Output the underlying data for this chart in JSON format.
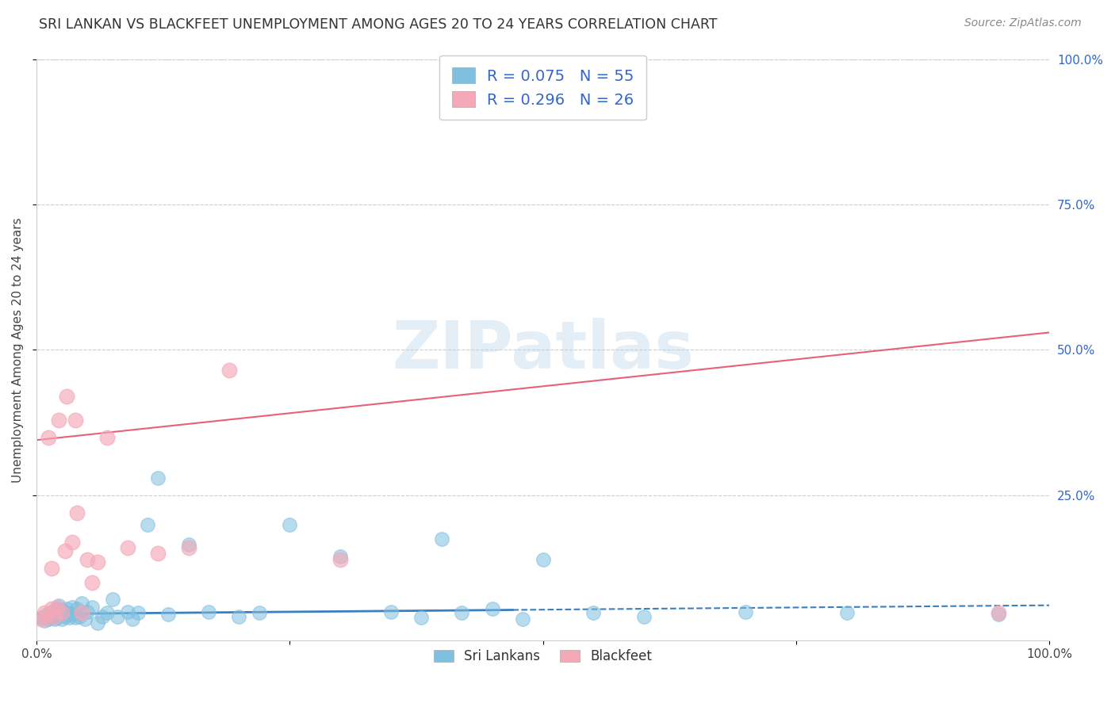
{
  "title": "SRI LANKAN VS BLACKFEET UNEMPLOYMENT AMONG AGES 20 TO 24 YEARS CORRELATION CHART",
  "source": "Source: ZipAtlas.com",
  "ylabel": "Unemployment Among Ages 20 to 24 years",
  "xlim": [
    0.0,
    1.0
  ],
  "ylim": [
    0.0,
    1.0
  ],
  "xticks": [
    0.0,
    0.25,
    0.5,
    0.75,
    1.0
  ],
  "xticklabels": [
    "0.0%",
    "",
    "",
    "",
    "100.0%"
  ],
  "ytick_vals": [
    0.25,
    0.5,
    0.75,
    1.0
  ],
  "ytick_labels": [
    "25.0%",
    "50.0%",
    "75.0%",
    "100.0%"
  ],
  "sri_lankan_color": "#7fbfdf",
  "blackfeet_color": "#f4a8b8",
  "sri_lankan_label": "Sri Lankans",
  "blackfeet_label": "Blackfeet",
  "sri_lankan_R": "0.075",
  "sri_lankan_N": "55",
  "blackfeet_R": "0.296",
  "blackfeet_N": "26",
  "legend_color": "#3366cc",
  "watermark_text": "ZIPatlas",
  "background_color": "#ffffff",
  "sri_lankan_line_color": "#3a7fbf",
  "blackfeet_line_color": "#e8607a",
  "grid_color": "#cccccc",
  "sri_lankan_x": [
    0.005,
    0.008,
    0.01,
    0.012,
    0.015,
    0.015,
    0.018,
    0.02,
    0.02,
    0.022,
    0.022,
    0.025,
    0.025,
    0.028,
    0.03,
    0.03,
    0.032,
    0.035,
    0.035,
    0.038,
    0.04,
    0.042,
    0.045,
    0.048,
    0.05,
    0.055,
    0.06,
    0.065,
    0.07,
    0.075,
    0.08,
    0.09,
    0.095,
    0.1,
    0.11,
    0.12,
    0.13,
    0.15,
    0.17,
    0.2,
    0.22,
    0.25,
    0.3,
    0.35,
    0.38,
    0.4,
    0.42,
    0.45,
    0.48,
    0.5,
    0.55,
    0.6,
    0.7,
    0.8,
    0.95
  ],
  "sri_lankan_y": [
    0.04,
    0.035,
    0.045,
    0.038,
    0.042,
    0.05,
    0.038,
    0.055,
    0.04,
    0.045,
    0.06,
    0.038,
    0.052,
    0.042,
    0.048,
    0.055,
    0.04,
    0.058,
    0.045,
    0.04,
    0.055,
    0.042,
    0.065,
    0.038,
    0.05,
    0.058,
    0.03,
    0.042,
    0.048,
    0.072,
    0.042,
    0.05,
    0.038,
    0.048,
    0.2,
    0.28,
    0.045,
    0.165,
    0.05,
    0.042,
    0.048,
    0.2,
    0.145,
    0.05,
    0.04,
    0.175,
    0.048,
    0.055,
    0.038,
    0.14,
    0.048,
    0.042,
    0.05,
    0.048,
    0.045
  ],
  "blackfeet_x": [
    0.005,
    0.008,
    0.01,
    0.012,
    0.015,
    0.015,
    0.018,
    0.02,
    0.022,
    0.025,
    0.028,
    0.03,
    0.035,
    0.038,
    0.04,
    0.045,
    0.05,
    0.055,
    0.06,
    0.07,
    0.09,
    0.12,
    0.15,
    0.19,
    0.3,
    0.95
  ],
  "blackfeet_y": [
    0.038,
    0.048,
    0.04,
    0.35,
    0.055,
    0.125,
    0.042,
    0.058,
    0.38,
    0.048,
    0.155,
    0.42,
    0.17,
    0.38,
    0.22,
    0.048,
    0.14,
    0.1,
    0.135,
    0.35,
    0.16,
    0.15,
    0.16,
    0.465,
    0.14,
    0.048
  ],
  "bf_intercept": 0.345,
  "bf_slope": 0.185,
  "sl_intercept": 0.046,
  "sl_slope": 0.015
}
